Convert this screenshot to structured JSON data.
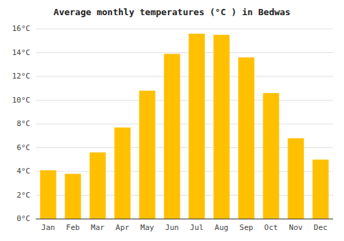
{
  "chart_data": {
    "type": "bar",
    "title": "Average monthly temperatures (°C ) in Bedwas",
    "categories": [
      "Jan",
      "Feb",
      "Mar",
      "Apr",
      "May",
      "Jun",
      "Jul",
      "Aug",
      "Sep",
      "Oct",
      "Nov",
      "Dec"
    ],
    "values": [
      4.1,
      3.8,
      5.6,
      7.7,
      10.8,
      13.9,
      15.6,
      15.5,
      13.6,
      10.6,
      6.8,
      5.0
    ],
    "color": "#FFC000",
    "ylim": [
      0,
      16
    ],
    "yticks": [
      {
        "value": 0,
        "label": "0°C"
      },
      {
        "value": 2,
        "label": "2°C"
      },
      {
        "value": 4,
        "label": "4°C"
      },
      {
        "value": 6,
        "label": "6°C"
      },
      {
        "value": 8,
        "label": "8°C"
      },
      {
        "value": 10,
        "label": "10°C"
      },
      {
        "value": 12,
        "label": "12°C"
      },
      {
        "value": 14,
        "label": "14°C"
      },
      {
        "value": 16,
        "label": "16°C"
      }
    ],
    "grid": true
  }
}
